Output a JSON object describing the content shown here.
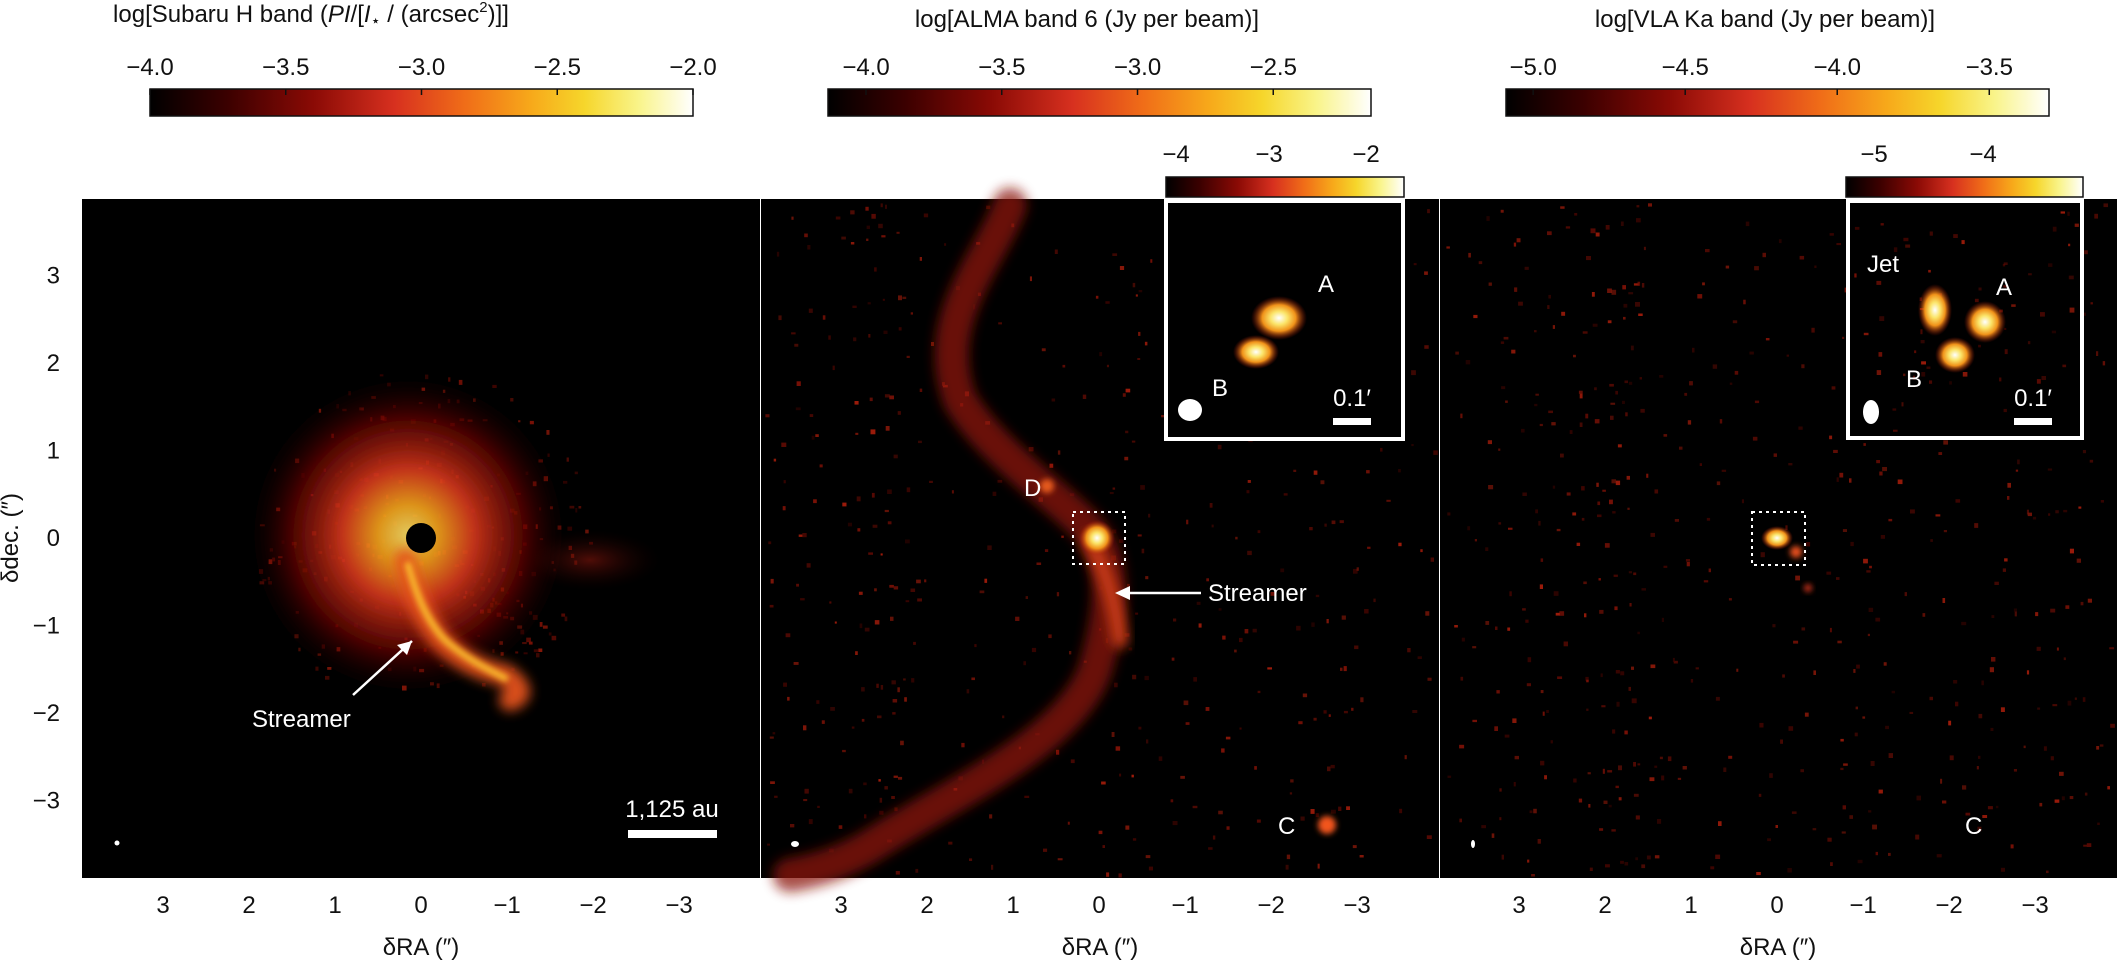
{
  "panels": [
    {
      "title": "log[Subaru H band (",
      "title_italic": "PI",
      "title_mid": "/[",
      "title_italic2": "I",
      "title_star": "⋆",
      "title_tail": " / (arcsec",
      "title_sup": "2",
      "title_end": ")]]",
      "colorbar_ticks": [
        "−4.0",
        "−3.5",
        "−3.0",
        "−2.5",
        "−2.0"
      ],
      "x_ticks": [
        "3",
        "2",
        "1",
        "0",
        "−1",
        "−2",
        "−3"
      ],
      "xlabel": "δRA (″)",
      "annotations": {
        "streamer": "Streamer",
        "scale": "1,125 au"
      }
    },
    {
      "title": "log[ALMA band 6 (Jy per beam)]",
      "colorbar_ticks": [
        "−4.0",
        "−3.5",
        "−3.0",
        "−2.5"
      ],
      "x_ticks": [
        "3",
        "2",
        "1",
        "0",
        "−1",
        "−2",
        "−3"
      ],
      "xlabel": "δRA (″)",
      "annotations": {
        "streamer": "Streamer",
        "d": "D",
        "c": "C"
      },
      "inset": {
        "ticks": [
          "−4",
          "−3",
          "−2"
        ],
        "a": "A",
        "b": "B",
        "scale": "0.1′"
      }
    },
    {
      "title": "log[VLA Ka band (Jy per beam)]",
      "colorbar_ticks": [
        "−5.0",
        "−4.5",
        "−4.0",
        "−3.5"
      ],
      "x_ticks": [
        "3",
        "2",
        "1",
        "0",
        "−1",
        "−2",
        "−3"
      ],
      "xlabel": "δRA (″)",
      "annotations": {
        "c": "C"
      },
      "inset": {
        "ticks": [
          "−5",
          "−4"
        ],
        "a": "A",
        "b": "B",
        "jet": "Jet",
        "scale": "0.1′"
      }
    }
  ],
  "y_axis": {
    "label": "δdec. (″)",
    "ticks": [
      "3",
      "2",
      "1",
      "0",
      "−1",
      "−2",
      "−3"
    ]
  },
  "colormap": [
    "#000000",
    "#3a0000",
    "#8a0a05",
    "#d7301f",
    "#f06d18",
    "#f7a81a",
    "#f6d62b",
    "#f9f48a",
    "#ffffff"
  ]
}
